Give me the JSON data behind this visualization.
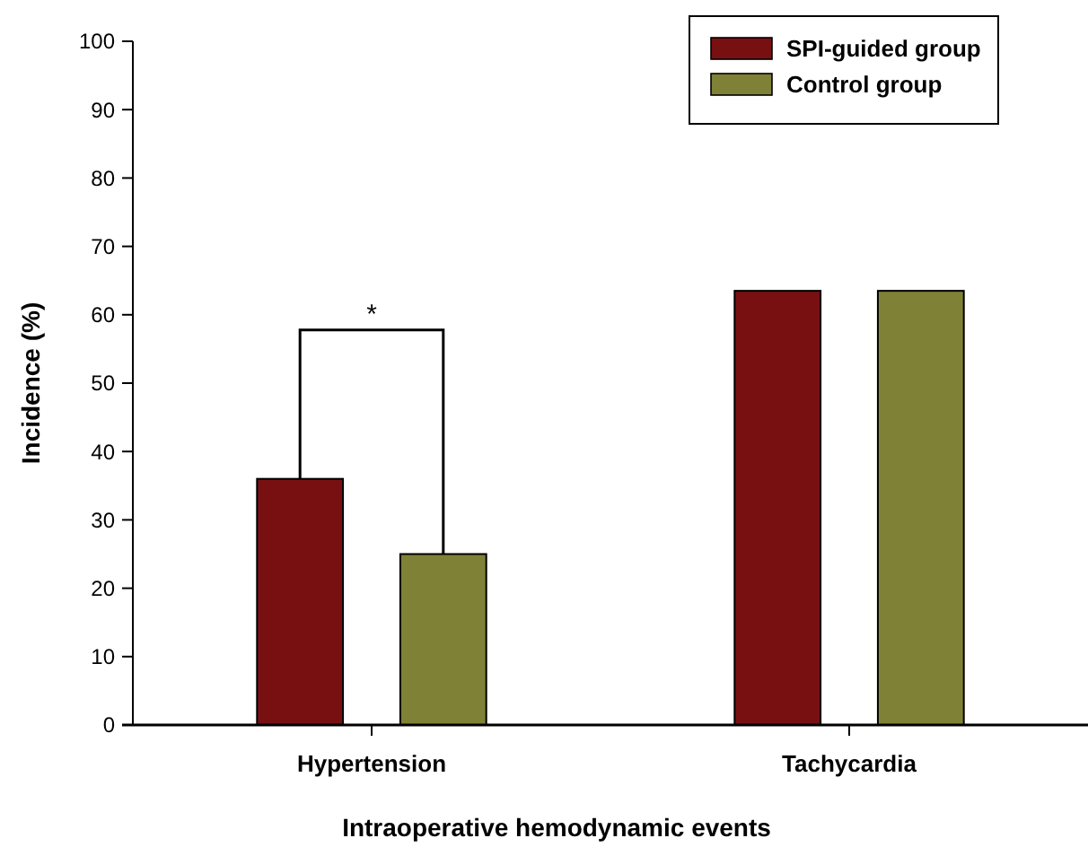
{
  "chart_data": {
    "type": "bar",
    "xlabel": "Intraoperative hemodynamic events",
    "ylabel": "Incidence (%)",
    "categories": [
      "Hypertension",
      "Tachycardia"
    ],
    "series": [
      {
        "name": "SPI-guided group",
        "color": "#781012",
        "values": [
          36,
          63.5
        ]
      },
      {
        "name": "Control group",
        "color": "#7f8136",
        "values": [
          25,
          63.5
        ]
      }
    ],
    "ylim": [
      0,
      100
    ],
    "yticks": [
      0,
      10,
      20,
      30,
      40,
      50,
      60,
      70,
      80,
      90,
      100
    ],
    "grid": false,
    "legend": "top right",
    "annotations": [
      "*"
    ]
  }
}
